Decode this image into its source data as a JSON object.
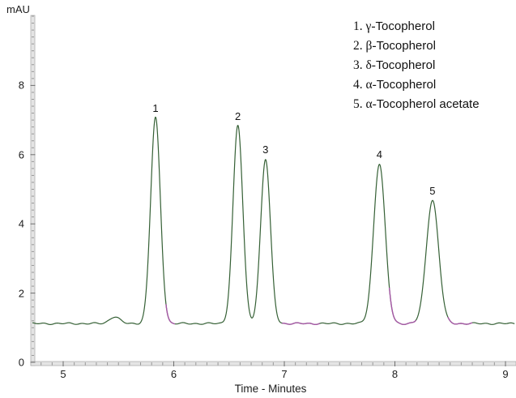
{
  "figure": {
    "y_axis_title": "mAU",
    "x_axis_title": "Time - Minutes",
    "background_color": "#ffffff",
    "trace_color": "#356035",
    "integration_mark_color": "#a658a6",
    "axis_bar_color": "#e4e4e4",
    "axis_edge_color": "#b0b0b0",
    "minor_tick_color": "#979797",
    "major_tick_color": "#6e6e6e",
    "text_color": "#1c1c1c"
  },
  "chart_data": {
    "type": "line",
    "title": "",
    "xlabel": "Time - Minutes",
    "ylabel": "mAU",
    "xlim": [
      4.707,
      9.088
    ],
    "ylim": [
      0,
      10
    ],
    "x_major_ticks": [
      5,
      6,
      7,
      8,
      9
    ],
    "x_minor_step": 0.1,
    "y_major_ticks": [
      0,
      2,
      4,
      6,
      8
    ],
    "y_minor_step": 0.2,
    "grid": false,
    "legend_position": "top-right",
    "baseline_mAU": 1.12,
    "peaks": [
      {
        "num": "1",
        "name": "γ-Tocopherol",
        "time_min": 5.835,
        "apex_mAU": 7.07,
        "sigma_min": 0.044
      },
      {
        "num": "2",
        "name": "β-Tocopherol",
        "time_min": 6.58,
        "apex_mAU": 6.85,
        "sigma_min": 0.044
      },
      {
        "num": "3",
        "name": "δ-Tocopherol",
        "time_min": 6.83,
        "apex_mAU": 5.87,
        "sigma_min": 0.044
      },
      {
        "num": "4",
        "name": "α-Tocopherol",
        "time_min": 7.86,
        "apex_mAU": 5.74,
        "sigma_min": 0.052
      },
      {
        "num": "5",
        "name": "α-Tocopherol acetate",
        "time_min": 8.34,
        "apex_mAU": 4.69,
        "sigma_min": 0.056
      }
    ],
    "baseline_bump": {
      "time_min": 5.465,
      "apex_mAU": 1.32,
      "sigma_min": 0.045
    },
    "integration_marks_min": [
      [
        5.93,
        6.01
      ],
      [
        6.98,
        7.32
      ],
      [
        7.95,
        8.19
      ],
      [
        8.48,
        8.7
      ]
    ],
    "legend": [
      "1. γ-Tocopherol",
      "2. β-Tocopherol",
      "3. δ-Tocopherol",
      "4. α-Tocopherol",
      "5. α-Tocopherol acetate"
    ]
  }
}
